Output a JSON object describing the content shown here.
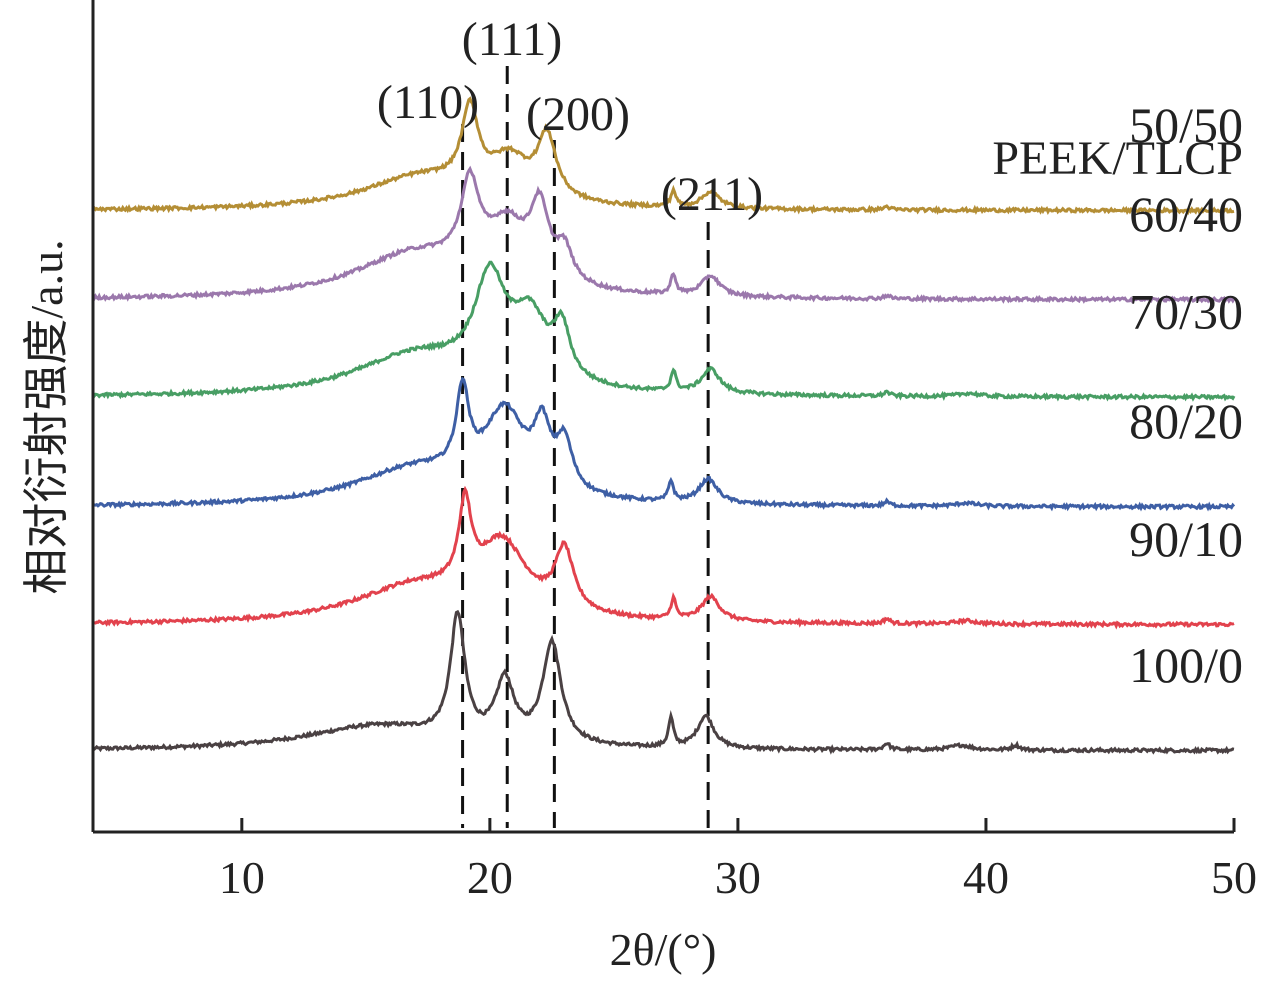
{
  "chart_data": {
    "type": "line",
    "xlabel": "2θ/(°)",
    "ylabel": "相对衍射强度/a.u.",
    "xlim": [
      4,
      50
    ],
    "x_ticks": [
      10,
      20,
      30,
      40,
      50
    ],
    "y_ticks": [],
    "grid": false,
    "legend_title": "PEEK/TLCP",
    "legend_placement": "right, beside each curve",
    "reference_lines": [
      {
        "label": "(110)",
        "x": 18.9,
        "style": "dashed"
      },
      {
        "label": "(111)",
        "x": 20.7,
        "style": "dashed"
      },
      {
        "label": "(200)",
        "x": 22.6,
        "style": "dashed"
      },
      {
        "label": "(211)",
        "x": 28.8,
        "style": "dashed"
      }
    ],
    "series": [
      {
        "name": "100/0",
        "color": "#4a4143",
        "baseline": 0.1,
        "peaks": [
          {
            "x": 15.5,
            "h": 0.03,
            "w": 3.5
          },
          {
            "x": 18.7,
            "h": 0.15,
            "w": 0.35
          },
          {
            "x": 20.6,
            "h": 0.075,
            "w": 0.45
          },
          {
            "x": 22.5,
            "h": 0.125,
            "w": 0.45
          },
          {
            "x": 27.3,
            "h": 0.035,
            "w": 0.12
          },
          {
            "x": 28.7,
            "h": 0.04,
            "w": 0.4
          },
          {
            "x": 36.0,
            "h": 0.008,
            "w": 0.15
          },
          {
            "x": 39.0,
            "h": 0.006,
            "w": 0.5
          },
          {
            "x": 41.2,
            "h": 0.006,
            "w": 0.2
          }
        ]
      },
      {
        "name": "90/10",
        "color": "#e2424d",
        "baseline": 0.255,
        "peaks": [
          {
            "x": 17.0,
            "h": 0.045,
            "w": 3.0
          },
          {
            "x": 19.0,
            "h": 0.1,
            "w": 0.3
          },
          {
            "x": 20.5,
            "h": 0.085,
            "w": 1.2
          },
          {
            "x": 23.0,
            "h": 0.075,
            "w": 0.45
          },
          {
            "x": 27.4,
            "h": 0.025,
            "w": 0.12
          },
          {
            "x": 28.9,
            "h": 0.03,
            "w": 0.45
          },
          {
            "x": 36.0,
            "h": 0.006,
            "w": 0.15
          },
          {
            "x": 39.2,
            "h": 0.004,
            "w": 0.5
          }
        ]
      },
      {
        "name": "80/20",
        "color": "#3e5fa5",
        "baseline": 0.4,
        "peaks": [
          {
            "x": 17.0,
            "h": 0.045,
            "w": 3.0
          },
          {
            "x": 18.9,
            "h": 0.1,
            "w": 0.3
          },
          {
            "x": 20.6,
            "h": 0.1,
            "w": 1.0
          },
          {
            "x": 22.1,
            "h": 0.07,
            "w": 0.4
          },
          {
            "x": 23.0,
            "h": 0.06,
            "w": 0.4
          },
          {
            "x": 27.3,
            "h": 0.025,
            "w": 0.12
          },
          {
            "x": 28.8,
            "h": 0.03,
            "w": 0.45
          },
          {
            "x": 36.0,
            "h": 0.005,
            "w": 0.15
          },
          {
            "x": 39.2,
            "h": 0.004,
            "w": 0.5
          }
        ]
      },
      {
        "name": "70/30",
        "color": "#489e64",
        "baseline": 0.535,
        "peaks": [
          {
            "x": 17.0,
            "h": 0.05,
            "w": 3.0
          },
          {
            "x": 20.0,
            "h": 0.12,
            "w": 0.75
          },
          {
            "x": 21.6,
            "h": 0.08,
            "w": 0.9
          },
          {
            "x": 22.9,
            "h": 0.06,
            "w": 0.4
          },
          {
            "x": 27.4,
            "h": 0.025,
            "w": 0.12
          },
          {
            "x": 28.9,
            "h": 0.03,
            "w": 0.45
          },
          {
            "x": 36.0,
            "h": 0.005,
            "w": 0.15
          },
          {
            "x": 39.3,
            "h": 0.004,
            "w": 0.5
          }
        ]
      },
      {
        "name": "60/40",
        "color": "#9b78ac",
        "baseline": 0.655,
        "peaks": [
          {
            "x": 17.0,
            "h": 0.055,
            "w": 3.0
          },
          {
            "x": 19.2,
            "h": 0.1,
            "w": 0.45
          },
          {
            "x": 20.7,
            "h": 0.07,
            "w": 1.0
          },
          {
            "x": 22.0,
            "h": 0.085,
            "w": 0.45
          },
          {
            "x": 23.0,
            "h": 0.04,
            "w": 0.4
          },
          {
            "x": 27.4,
            "h": 0.025,
            "w": 0.12
          },
          {
            "x": 28.9,
            "h": 0.025,
            "w": 0.45
          },
          {
            "x": 36.0,
            "h": 0.004,
            "w": 0.15
          }
        ]
      },
      {
        "name": "50/50",
        "color": "#b48e35",
        "baseline": 0.765,
        "peaks": [
          {
            "x": 17.2,
            "h": 0.04,
            "w": 2.8
          },
          {
            "x": 19.2,
            "h": 0.095,
            "w": 0.4
          },
          {
            "x": 20.8,
            "h": 0.05,
            "w": 1.0
          },
          {
            "x": 22.3,
            "h": 0.075,
            "w": 0.45
          },
          {
            "x": 27.4,
            "h": 0.02,
            "w": 0.12
          },
          {
            "x": 28.9,
            "h": 0.02,
            "w": 0.45
          },
          {
            "x": 36.0,
            "h": 0.004,
            "w": 0.15
          }
        ]
      }
    ]
  }
}
